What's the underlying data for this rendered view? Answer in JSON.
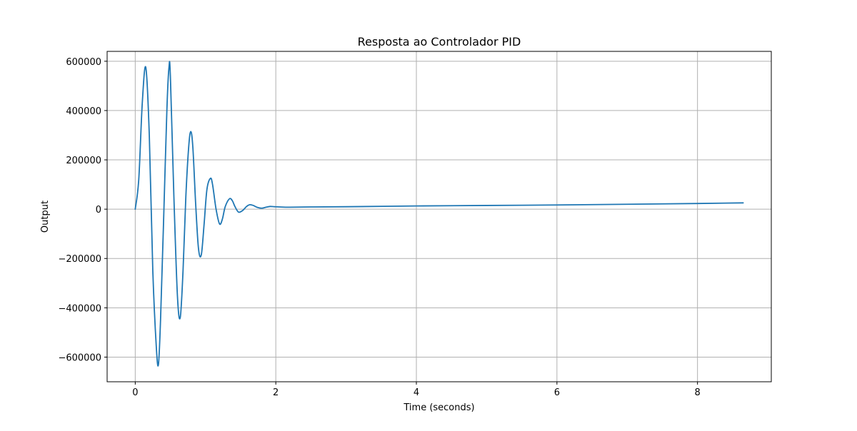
{
  "chart_data": {
    "type": "line",
    "title": "Resposta ao Controlador PID",
    "xlabel": "Time (seconds)",
    "ylabel": "Output",
    "xlim": [
      -0.4,
      9.05
    ],
    "ylim": [
      -700000,
      640000
    ],
    "xticks": [
      0,
      2,
      4,
      6,
      8
    ],
    "yticks": [
      600000,
      400000,
      200000,
      0,
      -200000,
      -400000,
      -600000
    ],
    "xtick_labels": [
      "0",
      "2",
      "4",
      "6",
      "8"
    ],
    "ytick_labels": [
      "600000",
      "400000",
      "200000",
      "0",
      "−200000",
      "−400000",
      "−600000"
    ],
    "grid": true,
    "line_color": "#1f77b4",
    "series": [
      {
        "name": "Output",
        "x": [
          0,
          0.05,
          0.1,
          0.15,
          0.2,
          0.25,
          0.3,
          0.33,
          0.36,
          0.4,
          0.45,
          0.48,
          0.5,
          0.55,
          0.6,
          0.64,
          0.68,
          0.72,
          0.76,
          0.79,
          0.82,
          0.86,
          0.9,
          0.94,
          0.98,
          1.02,
          1.07,
          1.1,
          1.15,
          1.2,
          1.24,
          1.28,
          1.34,
          1.38,
          1.42,
          1.47,
          1.53,
          1.58,
          1.63,
          1.68,
          1.73,
          1.8,
          1.86,
          1.92,
          1.98,
          2.05,
          2.2,
          2.5,
          3,
          4,
          5,
          6,
          7,
          8,
          8.65
        ],
        "y": [
          0,
          120000,
          430000,
          575000,
          300000,
          -250000,
          -560000,
          -630000,
          -450000,
          -80000,
          400000,
          575000,
          540000,
          50000,
          -350000,
          -440000,
          -250000,
          50000,
          250000,
          315000,
          250000,
          20000,
          -160000,
          -185000,
          -60000,
          80000,
          125000,
          100000,
          0,
          -60000,
          -40000,
          10000,
          42000,
          35000,
          10000,
          -12000,
          -5000,
          10000,
          18000,
          15000,
          8000,
          4000,
          8000,
          11000,
          10000,
          9000,
          8000,
          9000,
          10000,
          13000,
          15000,
          17000,
          20000,
          23000,
          25500
        ]
      }
    ]
  }
}
